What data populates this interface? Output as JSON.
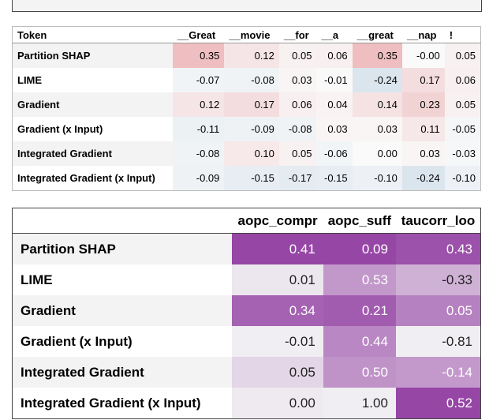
{
  "table1": {
    "header": [
      "Token",
      "__Great",
      "__movie",
      "__for",
      "__a",
      "__great",
      "__nap",
      "!"
    ],
    "rows": [
      {
        "label": "Partition SHAP",
        "cells": [
          "0.35",
          "0.12",
          "0.05",
          "0.06",
          "0.35",
          "-0.00",
          "0.05"
        ]
      },
      {
        "label": "LIME",
        "cells": [
          "-0.07",
          "-0.08",
          "0.03",
          "-0.01",
          "-0.24",
          "0.17",
          "0.06"
        ]
      },
      {
        "label": "Gradient",
        "cells": [
          "0.12",
          "0.17",
          "0.06",
          "0.04",
          "0.14",
          "0.23",
          "0.05"
        ]
      },
      {
        "label": "Gradient (x Input)",
        "cells": [
          "-0.11",
          "-0.09",
          "-0.08",
          "0.03",
          "0.03",
          "0.11",
          "-0.05"
        ]
      },
      {
        "label": "Integrated Gradient",
        "cells": [
          "-0.08",
          "0.10",
          "0.05",
          "-0.06",
          "0.00",
          "0.03",
          "-0.03"
        ]
      },
      {
        "label": "Integrated Gradient (x Input)",
        "cells": [
          "-0.09",
          "-0.15",
          "-0.17",
          "-0.15",
          "-0.10",
          "-0.24",
          "-0.10"
        ]
      }
    ]
  },
  "table2": {
    "header": [
      "aopc_compr",
      "aopc_suff",
      "taucorr_loo"
    ],
    "rows": [
      {
        "label": "Partition SHAP",
        "cells": [
          "0.41",
          "0.09",
          "0.43"
        ]
      },
      {
        "label": "LIME",
        "cells": [
          "0.01",
          "0.53",
          "-0.33"
        ]
      },
      {
        "label": "Gradient",
        "cells": [
          "0.34",
          "0.21",
          "0.05"
        ]
      },
      {
        "label": "Gradient (x Input)",
        "cells": [
          "-0.01",
          "0.44",
          "-0.81"
        ]
      },
      {
        "label": "Integrated Gradient",
        "cells": [
          "0.05",
          "0.50",
          "-0.14"
        ]
      },
      {
        "label": "Integrated Gradient (x Input)",
        "cells": [
          "0.00",
          "1.00",
          "0.52"
        ]
      }
    ]
  }
}
